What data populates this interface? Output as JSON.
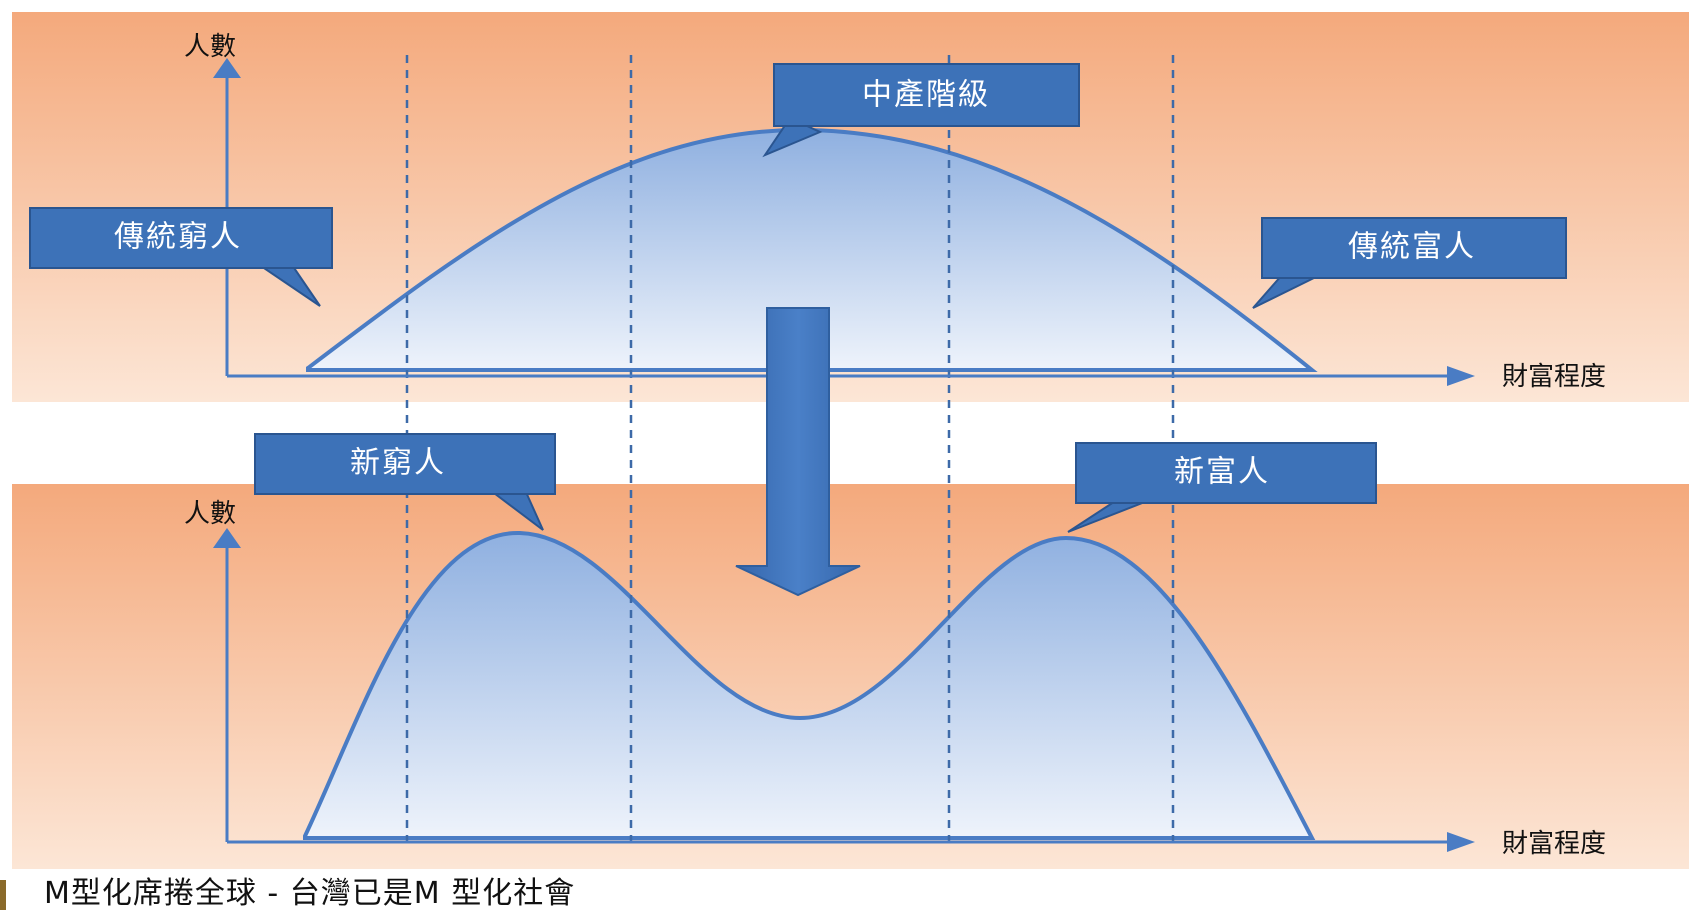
{
  "top_panel": {
    "y_axis_label": "人數",
    "x_axis_label": "財富程度",
    "callouts": {
      "middle_class": "中產階級",
      "traditional_poor": "傳統窮人",
      "traditional_rich": "傳統富人"
    }
  },
  "bottom_panel": {
    "y_axis_label": "人數",
    "x_axis_label": "財富程度",
    "callouts": {
      "new_poor": "新窮人",
      "new_rich": "新富人"
    }
  },
  "caption": "M型化席捲全球 - 台灣已是M 型化社會",
  "colors": {
    "panel_top": "#f4a97c",
    "panel_bottom": "#fbe2cf",
    "curve_line": "#4a7cc4",
    "curve_fill_top": "#8fb0e0",
    "curve_fill_bottom": "#e6eefa",
    "callout_fill": "#3d72b8",
    "callout_border": "#2a5590",
    "axis": "#4a7cc4",
    "arrow": "#3d72b8"
  }
}
